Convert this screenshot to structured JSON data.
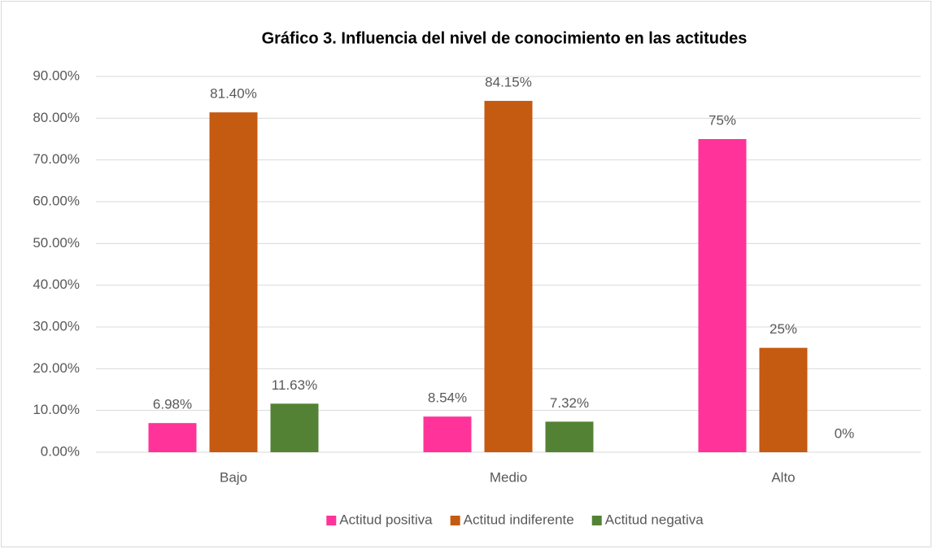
{
  "chart_data": {
    "type": "bar",
    "title": "Gráfico 3. Influencia del nivel de conocimiento  en las actitudes",
    "categories": [
      "Bajo",
      "Medio",
      "Alto"
    ],
    "series": [
      {
        "name": "Actitud positiva",
        "color": "#ff3399",
        "values": [
          6.98,
          8.54,
          75
        ],
        "value_labels": [
          "6.98%",
          "8.54%",
          "75%"
        ]
      },
      {
        "name": "Actitud indiferente",
        "color": "#c55a11",
        "values": [
          81.4,
          84.15,
          25
        ],
        "value_labels": [
          "81.40%",
          "84.15%",
          "25%"
        ]
      },
      {
        "name": "Actitud negativa",
        "color": "#548235",
        "values": [
          11.63,
          7.32,
          0
        ],
        "value_labels": [
          "11.63%",
          "7.32%",
          "0%"
        ]
      }
    ],
    "ylim": [
      0,
      90
    ],
    "yticks": [
      {
        "value": 0,
        "label": "0.00%"
      },
      {
        "value": 10,
        "label": "10.00%"
      },
      {
        "value": 20,
        "label": "20.00%"
      },
      {
        "value": 30,
        "label": "30.00%"
      },
      {
        "value": 40,
        "label": "40.00%"
      },
      {
        "value": 50,
        "label": "50.00%"
      },
      {
        "value": 60,
        "label": "60.00%"
      },
      {
        "value": 70,
        "label": "70.00%"
      },
      {
        "value": 80,
        "label": "80.00%"
      },
      {
        "value": 90,
        "label": "90.00%"
      }
    ],
    "grid": true,
    "legend": "bottom"
  }
}
